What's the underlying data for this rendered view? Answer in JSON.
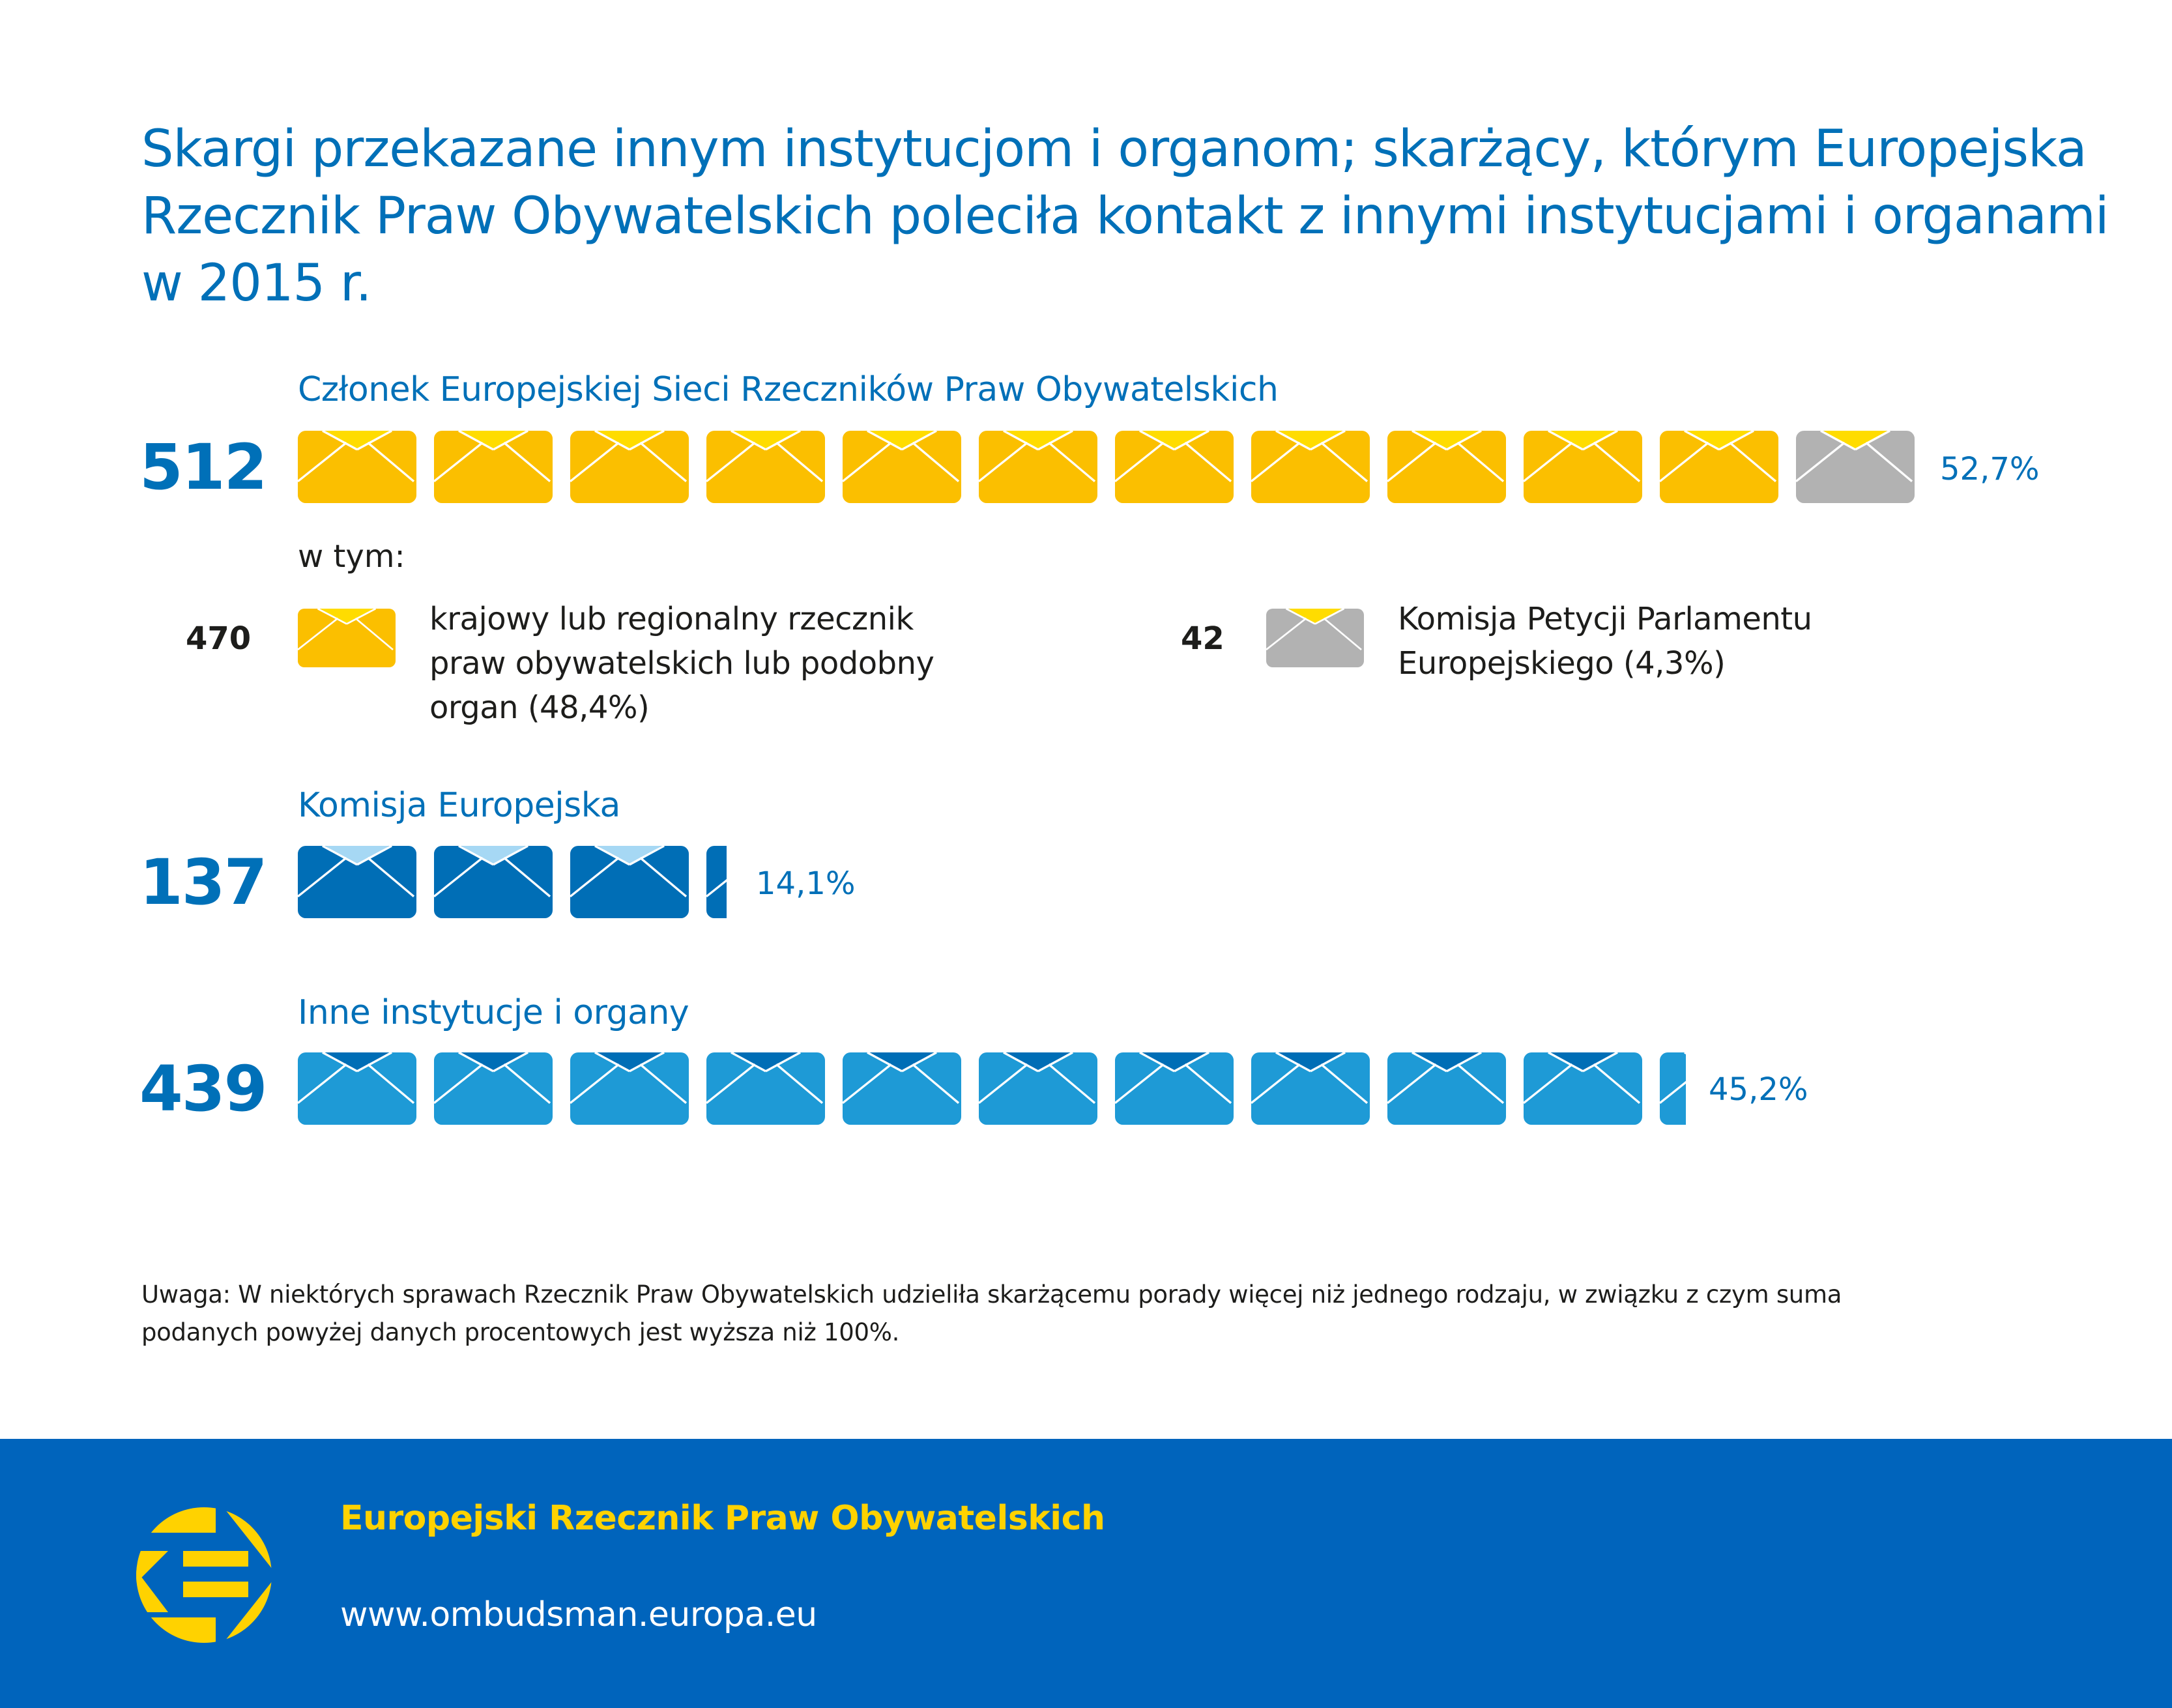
{
  "title_lines": [
    "Skargi przekazane innym instytucjom i organom; skarżący, którym Europejska",
    "Rzecznik Praw Obywatelskich poleciła kontakt z innymi instytucjami i organami",
    "w 2015 r."
  ],
  "colors": {
    "accent_blue": "#0070b8",
    "yellow_env": "#fbbf00",
    "yellow_flap": "#ffdc00",
    "grey_env": "#b2b2b2",
    "dark_blue_env": "#006eb6",
    "light_blue_flap": "#a6d8f4",
    "mid_blue_env": "#1e9ad6",
    "footer_bg": "#0064bc",
    "footer_yellow": "#ffd200"
  },
  "chart_data": {
    "type": "pictogram",
    "title": "Skargi przekazane innym instytucjom i organom; skarżący, którym Europejska Rzecznik Praw Obywatelskich poleciła kontakt z innymi instytucjami i organami w 2015 r.",
    "unit_per_icon": "approx. 4.4% (≈43 complaints) per envelope",
    "categories": [
      {
        "label": "Członek Europejskiej Sieci Rzeczników Praw Obywatelskich",
        "value": 512,
        "percent_label": "52,7%",
        "percent": 52.7,
        "icons": 12,
        "icon_colors": [
          "yellow",
          "yellow",
          "yellow",
          "yellow",
          "yellow",
          "yellow",
          "yellow",
          "yellow",
          "yellow",
          "yellow",
          "yellow",
          "grey"
        ],
        "subcategories_label": "w tym:",
        "subcategories": [
          {
            "value": 470,
            "color": "yellow",
            "text_lines": [
              "krajowy lub regionalny rzecznik",
              "praw obywatelskich lub podobny",
              "organ (48,4%)"
            ],
            "percent": 48.4
          },
          {
            "value": 42,
            "color": "grey",
            "text_lines": [
              "Komisja Petycji Parlamentu",
              "Europejskiego (4,3%)"
            ],
            "percent": 4.3
          }
        ]
      },
      {
        "label": "Komisja Europejska",
        "value": 137,
        "percent_label": "14,1%",
        "percent": 14.1,
        "icons": 3.17,
        "icon_color": "dark_blue"
      },
      {
        "label": "Inne instytucje i organy",
        "value": 439,
        "percent_label": "45,2%",
        "percent": 45.2,
        "icons": 10.22,
        "icon_color": "mid_blue"
      }
    ]
  },
  "note_lines": [
    "Uwaga: W niektórych sprawach Rzecznik Praw Obywatelskich udzieliła skarżącemu porady więcej niż jednego rodzaju, w związku z czym suma",
    "podanych powyżej danych procentowych jest wyższa niż 100%."
  ],
  "footer": {
    "name": "Europejski Rzecznik Praw Obywatelskich",
    "url": "www.ombudsman.europa.eu",
    "logo_icon": "european-ombudsman-logo-icon"
  }
}
